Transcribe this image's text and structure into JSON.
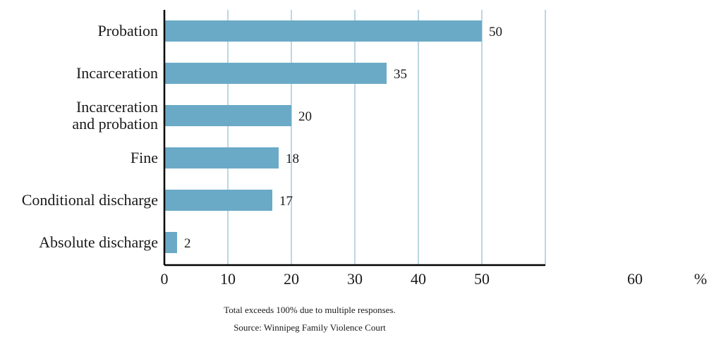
{
  "chart_data": {
    "type": "bar",
    "orientation": "horizontal",
    "categories": [
      [
        "Probation"
      ],
      [
        "Incarceration"
      ],
      [
        "Incarceration",
        "and probation"
      ],
      [
        "Fine"
      ],
      [
        "Conditional discharge"
      ],
      [
        "Absolute discharge"
      ]
    ],
    "values": [
      50,
      35,
      20,
      18,
      17,
      2
    ],
    "value_labels": [
      "50",
      "35",
      "20",
      "18",
      "17",
      "2"
    ],
    "x_ticks": [
      0,
      10,
      20,
      30,
      40,
      50,
      60
    ],
    "x_tick_labels": [
      "0",
      "10",
      "20",
      "30",
      "40",
      "50",
      "60"
    ],
    "x_unit_label": "%",
    "xlim": [
      0,
      60
    ],
    "grid": "vertical",
    "bar_color": "#6aaac6",
    "grid_color": "#8fbccf",
    "axis_color": "#000000",
    "title": "",
    "xlabel": "",
    "ylabel": ""
  },
  "notes": {
    "multiple_responses": "Total exceeds 100% due to multiple responses.",
    "source": "Source: Winnipeg Family Violence Court"
  }
}
